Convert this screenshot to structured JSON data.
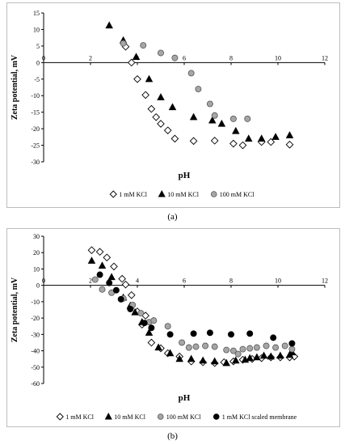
{
  "captions": {
    "a": "(a)",
    "b": "(b)"
  },
  "chart_data": [
    {
      "type": "scatter",
      "id": "a",
      "xlabel": "pH",
      "ylabel": "Zeta potential, mV",
      "xlim": [
        0,
        12
      ],
      "ylim": [
        -30,
        15
      ],
      "xticks": [
        0,
        2,
        4,
        6,
        8,
        10,
        12
      ],
      "yticks": [
        15,
        10,
        5,
        0,
        -5,
        -10,
        -15,
        -20,
        -25,
        -30
      ],
      "grid": false,
      "legend": "bottom",
      "series": [
        {
          "name": "1 mM KCl",
          "marker": "diamond",
          "color": "#ffffff",
          "stroke": "#000000",
          "points": [
            [
              3.5,
              4.8
            ],
            [
              3.75,
              0
            ],
            [
              4.0,
              -5
            ],
            [
              4.35,
              -9.8
            ],
            [
              4.6,
              -14
            ],
            [
              4.8,
              -16.5
            ],
            [
              5.0,
              -18.5
            ],
            [
              5.3,
              -20.5
            ],
            [
              5.6,
              -23
            ],
            [
              6.4,
              -23.7
            ],
            [
              7.3,
              -23.6
            ],
            [
              8.1,
              -24.5
            ],
            [
              8.5,
              -25
            ],
            [
              9.3,
              -24
            ],
            [
              9.7,
              -24
            ],
            [
              10.5,
              -24.8
            ]
          ]
        },
        {
          "name": "10 mM KCl",
          "marker": "triangle",
          "color": "#000000",
          "stroke": "#000000",
          "points": [
            [
              2.8,
              11.2
            ],
            [
              3.4,
              6.7
            ],
            [
              3.95,
              1.7
            ],
            [
              4.5,
              -5
            ],
            [
              5.0,
              -10.5
            ],
            [
              5.5,
              -13.5
            ],
            [
              6.4,
              -16.5
            ],
            [
              7.2,
              -17.5
            ],
            [
              7.6,
              -18.5
            ],
            [
              8.2,
              -20.7
            ],
            [
              8.75,
              -23
            ],
            [
              9.3,
              -23
            ],
            [
              9.9,
              -22.5
            ],
            [
              10.5,
              -22
            ]
          ]
        },
        {
          "name": "100 mM KCl",
          "marker": "circle",
          "color": "#a6a6a6",
          "stroke": "#555555",
          "points": [
            [
              3.4,
              5.8
            ],
            [
              4.25,
              5.2
            ],
            [
              5.0,
              2.9
            ],
            [
              5.6,
              1.4
            ],
            [
              6.3,
              -3.2
            ],
            [
              6.6,
              -8
            ],
            [
              7.1,
              -12.5
            ],
            [
              7.3,
              -16
            ],
            [
              8.1,
              -17
            ],
            [
              8.7,
              -17
            ]
          ]
        }
      ]
    },
    {
      "type": "scatter",
      "id": "b",
      "xlabel": "pH",
      "ylabel": "Zeta potential, mV",
      "xlim": [
        0,
        12
      ],
      "ylim": [
        -60,
        30
      ],
      "xticks": [
        0,
        2,
        4,
        6,
        8,
        10,
        12
      ],
      "yticks": [
        30,
        20,
        10,
        0,
        -10,
        -20,
        -30,
        -40,
        -50,
        -60
      ],
      "grid": false,
      "legend": "bottom",
      "series": [
        {
          "name": "1 mM KCl",
          "marker": "diamond",
          "color": "#ffffff",
          "stroke": "#000000",
          "points": [
            [
              2.05,
              21.5
            ],
            [
              2.4,
              20.5
            ],
            [
              2.7,
              17
            ],
            [
              3.0,
              11.5
            ],
            [
              3.35,
              4
            ],
            [
              3.5,
              0.5
            ],
            [
              3.75,
              -6
            ],
            [
              4.0,
              -16
            ],
            [
              4.2,
              -24
            ],
            [
              4.35,
              -18.5
            ],
            [
              4.6,
              -35
            ],
            [
              5.0,
              -38.5
            ],
            [
              5.3,
              -41.5
            ],
            [
              5.8,
              -43.5
            ],
            [
              6.3,
              -46.5
            ],
            [
              6.8,
              -47
            ],
            [
              7.3,
              -47.5
            ],
            [
              7.7,
              -47
            ],
            [
              8.1,
              -46.5
            ],
            [
              8.5,
              -45.5
            ],
            [
              8.9,
              -45
            ],
            [
              9.3,
              -44.5
            ],
            [
              9.7,
              -44
            ],
            [
              10.1,
              -44
            ],
            [
              10.5,
              -44
            ],
            [
              10.7,
              -43.5
            ]
          ]
        },
        {
          "name": "10 mM KCl",
          "marker": "triangle",
          "color": "#000000",
          "stroke": "#000000",
          "points": [
            [
              2.05,
              15
            ],
            [
              2.5,
              12
            ],
            [
              2.9,
              5
            ],
            [
              3.4,
              -7.5
            ],
            [
              3.7,
              -12.5
            ],
            [
              3.9,
              -16.5
            ],
            [
              4.2,
              -22.5
            ],
            [
              4.5,
              -29
            ],
            [
              4.9,
              -38
            ],
            [
              5.4,
              -41.5
            ],
            [
              5.8,
              -45
            ],
            [
              6.3,
              -45
            ],
            [
              6.8,
              -46
            ],
            [
              7.3,
              -46.5
            ],
            [
              7.8,
              -47.5
            ],
            [
              8.2,
              -46
            ],
            [
              8.6,
              -45.5
            ],
            [
              8.8,
              -44.5
            ],
            [
              9.1,
              -44
            ],
            [
              9.4,
              -43
            ],
            [
              9.7,
              -43.5
            ],
            [
              10.1,
              -43
            ],
            [
              10.5,
              -42.5
            ],
            [
              10.6,
              -41
            ]
          ]
        },
        {
          "name": "100 mM KCl",
          "marker": "circle",
          "color": "#a6a6a6",
          "stroke": "#555555",
          "points": [
            [
              2.2,
              3.5
            ],
            [
              2.5,
              -2.5
            ],
            [
              2.9,
              -4.5
            ],
            [
              3.4,
              -8
            ],
            [
              3.8,
              -12
            ],
            [
              4.15,
              -17
            ],
            [
              4.5,
              -22.5
            ],
            [
              4.7,
              -21.5
            ],
            [
              5.3,
              -25
            ],
            [
              5.9,
              -35
            ],
            [
              6.2,
              -38
            ],
            [
              6.5,
              -37.5
            ],
            [
              6.9,
              -37
            ],
            [
              7.3,
              -37.5
            ],
            [
              7.8,
              -39.5
            ],
            [
              8.1,
              -40
            ],
            [
              8.3,
              -42
            ],
            [
              8.5,
              -39
            ],
            [
              8.8,
              -38.5
            ],
            [
              9.1,
              -38
            ],
            [
              9.5,
              -37
            ],
            [
              9.9,
              -38
            ],
            [
              10.3,
              -37
            ],
            [
              10.6,
              -39
            ]
          ]
        },
        {
          "name": "1 mM KCl scaled membrane",
          "marker": "circle",
          "color": "#000000",
          "stroke": "#000000",
          "points": [
            [
              2.4,
              6.5
            ],
            [
              2.8,
              1.5
            ],
            [
              3.1,
              -3
            ],
            [
              3.3,
              -8.5
            ],
            [
              3.7,
              -14.5
            ],
            [
              4.3,
              -23
            ],
            [
              4.6,
              -26
            ],
            [
              5.4,
              -30
            ],
            [
              6.4,
              -29.5
            ],
            [
              7.1,
              -29
            ],
            [
              8.0,
              -30
            ],
            [
              8.8,
              -29.5
            ],
            [
              9.8,
              -32
            ],
            [
              10.6,
              -35.5
            ]
          ]
        }
      ]
    }
  ]
}
